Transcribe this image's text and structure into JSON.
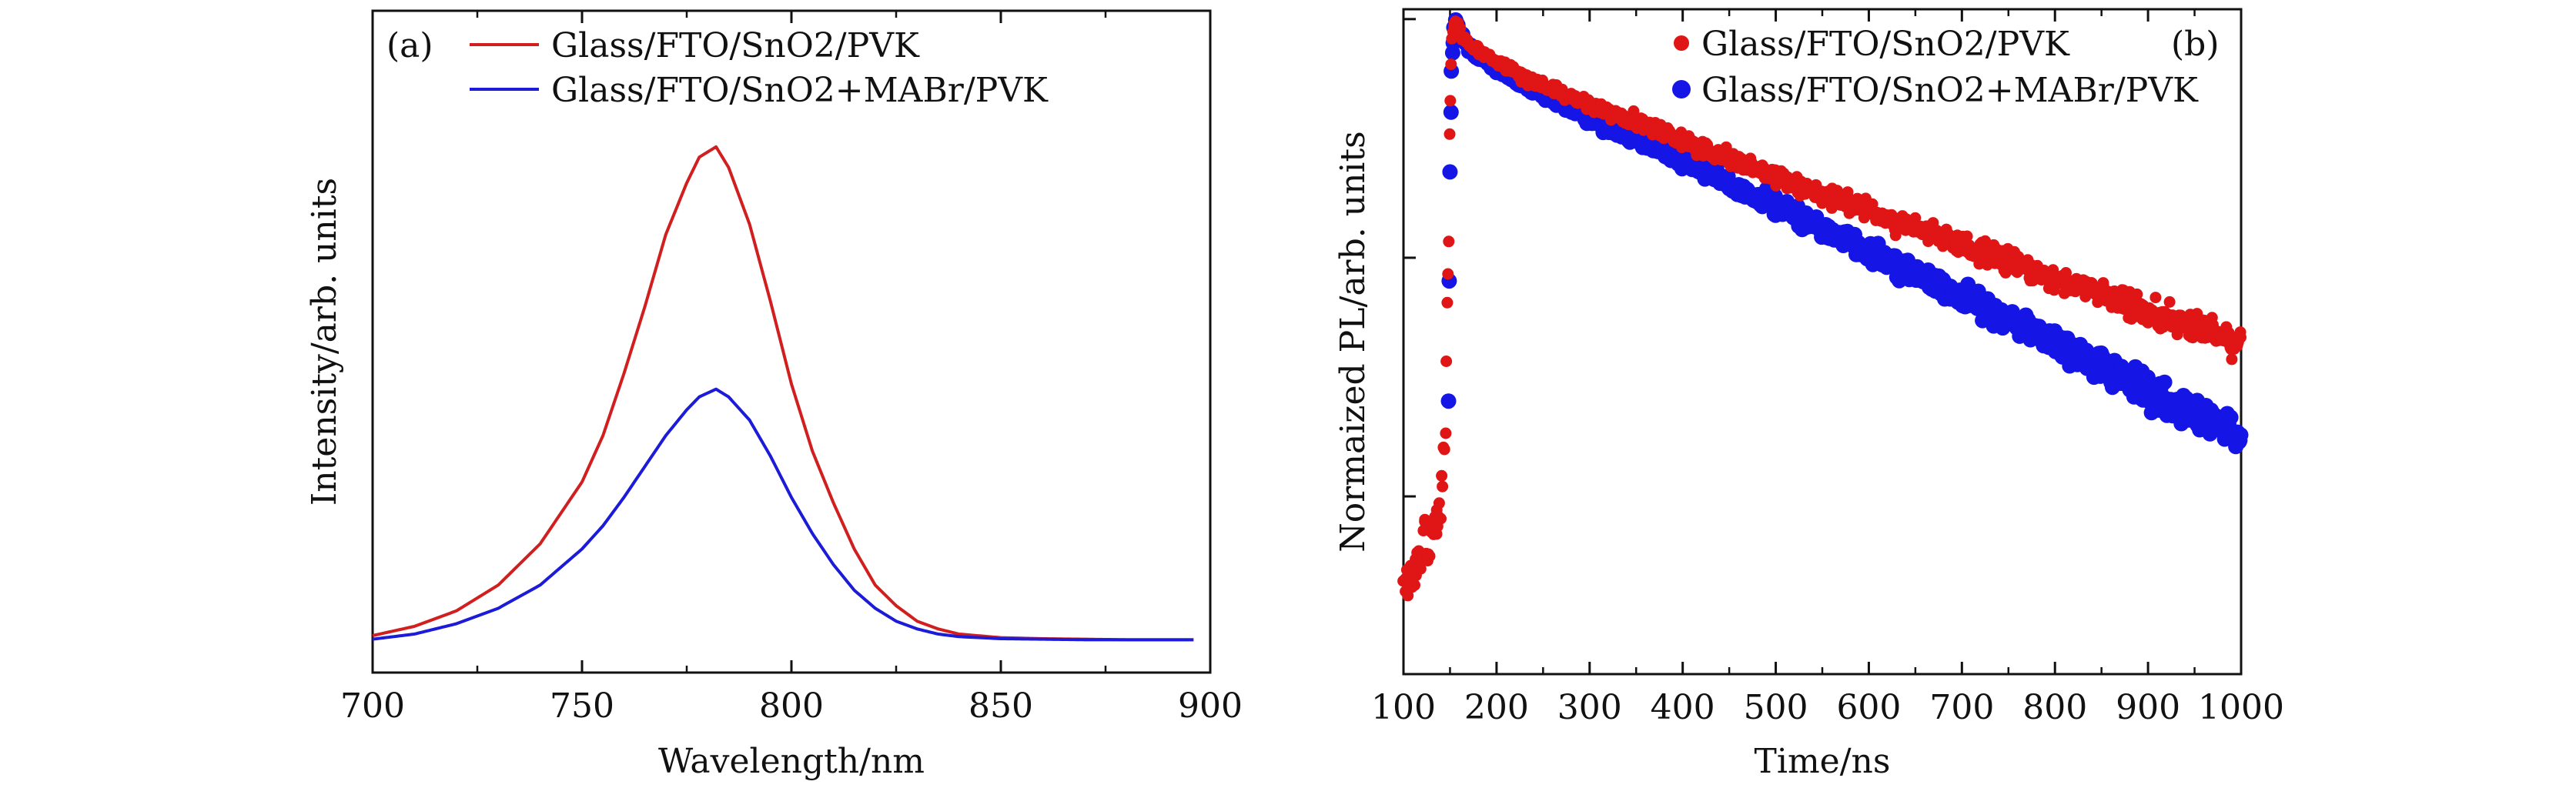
{
  "chart_data": [
    {
      "type": "line",
      "panel_label": "(a)",
      "xlabel": "Wavelength/nm",
      "ylabel": "Intensity/arb. units",
      "xlim": [
        700,
        900
      ],
      "ylim": [
        0,
        1.0
      ],
      "xticks": [
        700,
        750,
        800,
        850,
        900
      ],
      "show_y_tick_labels": false,
      "legend_position": "top-right",
      "series": [
        {
          "name": "Glass/FTO/SnO2/PVK",
          "color": "#d11f1f",
          "x": [
            700,
            710,
            720,
            730,
            740,
            750,
            755,
            760,
            765,
            770,
            775,
            778,
            782,
            785,
            790,
            795,
            800,
            805,
            810,
            815,
            820,
            825,
            830,
            835,
            840,
            850,
            860,
            870,
            880,
            896
          ],
          "y": [
            0.012,
            0.03,
            0.06,
            0.11,
            0.19,
            0.31,
            0.4,
            0.52,
            0.65,
            0.79,
            0.89,
            0.94,
            0.96,
            0.92,
            0.81,
            0.66,
            0.5,
            0.37,
            0.27,
            0.18,
            0.11,
            0.07,
            0.04,
            0.025,
            0.015,
            0.008,
            0.006,
            0.005,
            0.004,
            0.004
          ]
        },
        {
          "name": "Glass/FTO/SnO2+MABr/PVK",
          "color": "#1b1bd8",
          "x": [
            700,
            710,
            720,
            730,
            740,
            750,
            755,
            760,
            765,
            770,
            775,
            778,
            782,
            785,
            790,
            795,
            800,
            805,
            810,
            815,
            820,
            825,
            830,
            835,
            840,
            850,
            860,
            870,
            880,
            896
          ],
          "y": [
            0.005,
            0.015,
            0.035,
            0.065,
            0.11,
            0.18,
            0.225,
            0.28,
            0.34,
            0.4,
            0.45,
            0.475,
            0.49,
            0.475,
            0.43,
            0.36,
            0.28,
            0.21,
            0.15,
            0.1,
            0.065,
            0.04,
            0.025,
            0.015,
            0.01,
            0.006,
            0.005,
            0.004,
            0.004,
            0.004
          ]
        }
      ]
    },
    {
      "type": "scatter",
      "panel_label": "(b)",
      "xlabel": "Time/ns",
      "ylabel": "Normaized PL/arb. units",
      "xlim": [
        100,
        1000
      ],
      "ylim": [
        0.0018,
        1.1
      ],
      "y_scale": "log",
      "xticks": [
        100,
        200,
        300,
        400,
        500,
        600,
        700,
        800,
        900,
        1000
      ],
      "show_y_tick_labels": false,
      "legend_position": "top-right",
      "series": [
        {
          "name": "Glass/FTO/SnO2/PVK",
          "color": "#e01515",
          "x": [
            100,
            110,
            120,
            130,
            140,
            145,
            148,
            150,
            152,
            155,
            160,
            170,
            200,
            250,
            300,
            350,
            400,
            450,
            500,
            550,
            600,
            650,
            700,
            750,
            800,
            850,
            900,
            950,
            1000
          ],
          "y": [
            0.004,
            0.005,
            0.006,
            0.007,
            0.009,
            0.02,
            0.1,
            0.4,
            0.8,
            1.0,
            0.9,
            0.78,
            0.66,
            0.52,
            0.44,
            0.37,
            0.31,
            0.26,
            0.22,
            0.185,
            0.157,
            0.133,
            0.113,
            0.096,
            0.082,
            0.07,
            0.06,
            0.051,
            0.044
          ]
        },
        {
          "name": "Glass/FTO/SnO2+MABr/PVK",
          "color": "#1515e6",
          "x": [
            148,
            150,
            152,
            155,
            160,
            170,
            200,
            250,
            300,
            350,
            400,
            450,
            500,
            550,
            600,
            650,
            700,
            750,
            800,
            850,
            900,
            950,
            1000
          ],
          "y": [
            0.03,
            0.3,
            0.7,
            1.0,
            0.88,
            0.76,
            0.62,
            0.48,
            0.39,
            0.315,
            0.255,
            0.205,
            0.165,
            0.133,
            0.107,
            0.086,
            0.069,
            0.055,
            0.044,
            0.035,
            0.028,
            0.022,
            0.018
          ]
        }
      ]
    }
  ]
}
